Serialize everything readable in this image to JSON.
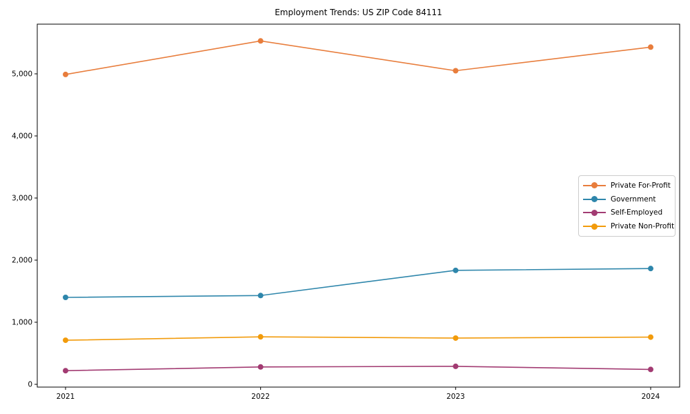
{
  "chart_data": {
    "type": "line",
    "title": "Employment Trends: US ZIP Code 84111",
    "categories": [
      "2021",
      "2022",
      "2023",
      "2024"
    ],
    "series": [
      {
        "name": "Private For-Profit",
        "color": "#E87D3C",
        "values": [
          4990,
          5530,
          5050,
          5430
        ]
      },
      {
        "name": "Government",
        "color": "#2E86AB",
        "values": [
          1400,
          1430,
          1835,
          1865
        ]
      },
      {
        "name": "Self-Employed",
        "color": "#A23B72",
        "values": [
          220,
          280,
          290,
          240
        ]
      },
      {
        "name": "Private Non-Profit",
        "color": "#F29B0B",
        "values": [
          710,
          765,
          745,
          760
        ]
      }
    ],
    "xlabel": "",
    "ylabel": "",
    "yticks": [
      0,
      1000,
      2000,
      3000,
      4000,
      5000
    ],
    "ytick_labels": [
      "0",
      "1,000",
      "2,000",
      "3,000",
      "4,000",
      "5,000"
    ],
    "ylim": [
      -50,
      5820
    ],
    "grid": false,
    "legend_position": "center-right",
    "marker": "circle",
    "axis_color": "#000000"
  }
}
